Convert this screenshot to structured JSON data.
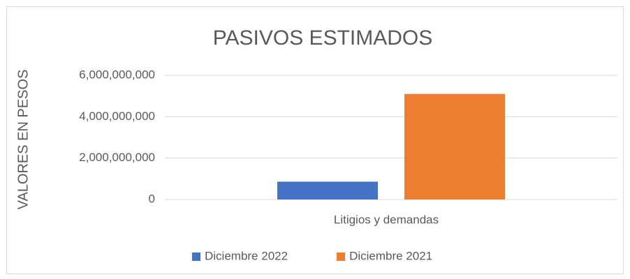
{
  "chart_data": {
    "type": "bar",
    "title": "PASIVOS ESTIMADOS",
    "y_label": "VALORES EN PESOS",
    "categories": [
      "Litigios y demandas"
    ],
    "series": [
      {
        "name": "Diciembre 2022",
        "color": "#4472c4",
        "values": [
          860000000
        ]
      },
      {
        "name": "Diciembre 2021",
        "color": "#ed7d31",
        "values": [
          5100000000
        ]
      }
    ],
    "ylim": [
      0,
      6000000000
    ],
    "yticks": [
      0,
      {
        "value": 2000000000,
        "label": "2,000,000,000"
      },
      {
        "value": 4000000000,
        "label": "4,000,000,000"
      },
      {
        "value": 6000000000,
        "label": "6,000,000,000"
      }
    ],
    "grid": true,
    "legend": "bottom"
  }
}
